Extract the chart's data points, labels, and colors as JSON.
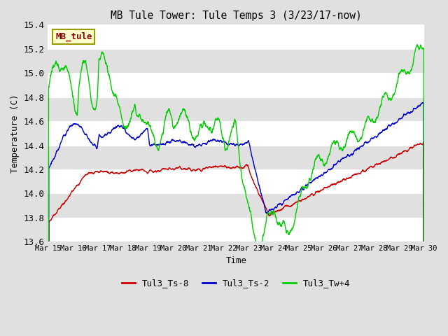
{
  "title": "MB Tule Tower: Tule Temps 3 (3/23/17-now)",
  "xlabel": "Time",
  "ylabel": "Temperature (C)",
  "ylim": [
    13.6,
    15.4
  ],
  "yticks": [
    13.6,
    13.8,
    14.0,
    14.2,
    14.4,
    14.6,
    14.8,
    15.0,
    15.2,
    15.4
  ],
  "xtick_labels": [
    "Mar 15",
    "Mar 16",
    "Mar 17",
    "Mar 18",
    "Mar 19",
    "Mar 20",
    "Mar 21",
    "Mar 22",
    "Mar 23",
    "Mar 24",
    "Mar 25",
    "Mar 26",
    "Mar 27",
    "Mar 28",
    "Mar 29",
    "Mar 30"
  ],
  "colors": {
    "red": "#cc0000",
    "blue": "#0000cc",
    "green": "#00cc00"
  },
  "legend_label": "MB_tule",
  "legend_bg": "#ffffcc",
  "legend_edge": "#999900",
  "series_labels": [
    "Tul3_Ts-8",
    "Tul3_Ts-2",
    "Tul3_Tw+4"
  ],
  "bg_color": "#e0e0e0",
  "grid_color": "#ffffff",
  "font_family": "monospace"
}
